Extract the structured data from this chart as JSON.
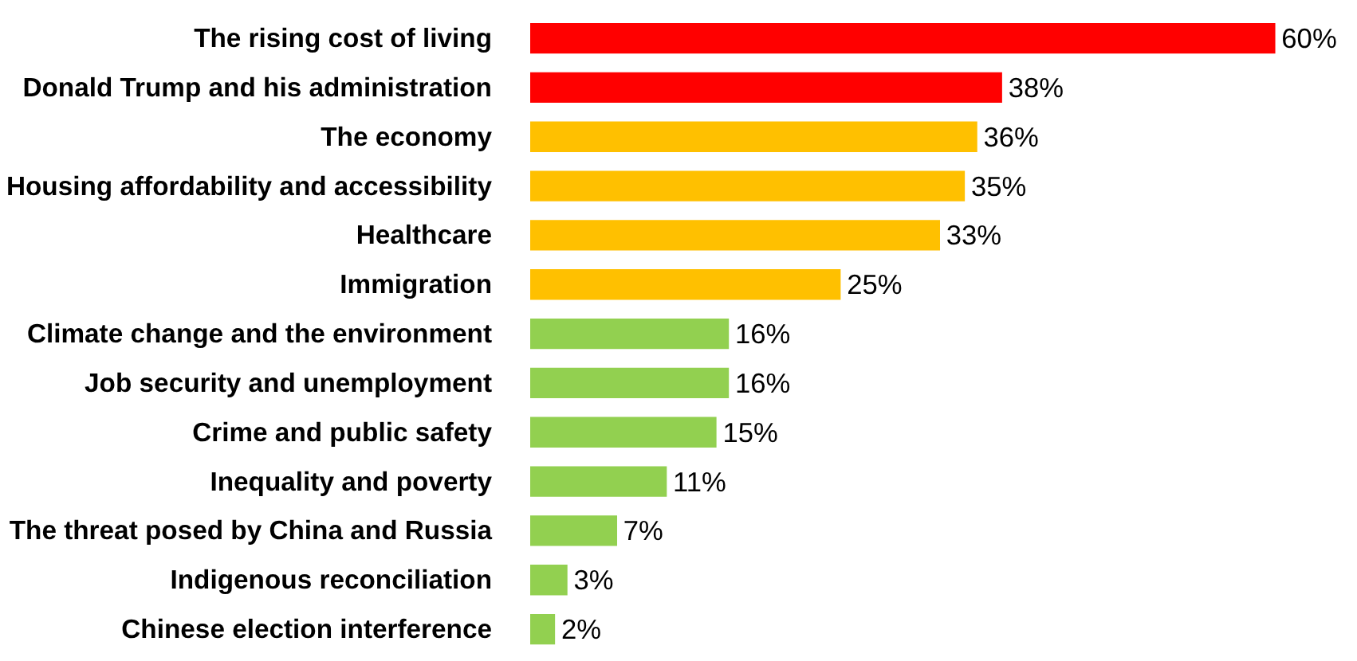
{
  "chart_data": {
    "type": "bar",
    "orientation": "horizontal",
    "categories": [
      "The rising cost of living",
      "Donald Trump and his administration",
      "The economy",
      "Housing affordability and accessibility",
      "Healthcare",
      "Immigration",
      "Climate change and the environment",
      "Job security and unemployment",
      "Crime and public safety",
      "Inequality and poverty",
      "The threat posed by China and Russia",
      "Indigenous reconciliation",
      "Chinese election interference"
    ],
    "values": [
      60,
      38,
      36,
      35,
      33,
      25,
      16,
      16,
      15,
      11,
      7,
      3,
      2
    ],
    "value_labels": [
      "60%",
      "38%",
      "36%",
      "35%",
      "33%",
      "25%",
      "16%",
      "16%",
      "15%",
      "11%",
      "7%",
      "3%",
      "2%"
    ],
    "colors": [
      "#ff0000",
      "#ff0000",
      "#ffc000",
      "#ffc000",
      "#ffc000",
      "#ffc000",
      "#92d050",
      "#92d050",
      "#92d050",
      "#92d050",
      "#92d050",
      "#92d050",
      "#92d050"
    ],
    "tick_labels": "y"
  }
}
